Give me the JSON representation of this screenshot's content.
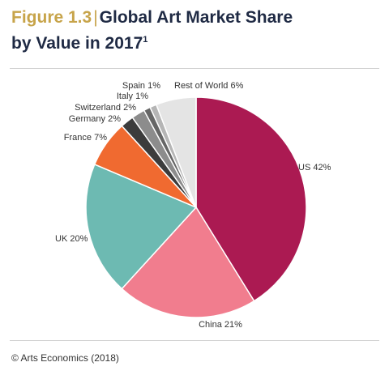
{
  "figure": {
    "label": "Figure 1.3",
    "title_line1": "Global Art Market Share",
    "title_line2": "by Value in 2017",
    "footnote": "1"
  },
  "source": "© Arts Economics (2018)",
  "chart_data": {
    "type": "pie",
    "title": "Global Art Market Share by Value in 2017",
    "unit": "%",
    "slices": [
      {
        "name": "US",
        "value": 42,
        "label": "US 42%",
        "color": "#ab1a52"
      },
      {
        "name": "China",
        "value": 21,
        "label": "China 21%",
        "color": "#f17d8e"
      },
      {
        "name": "UK",
        "value": 20,
        "label": "UK 20%",
        "color": "#6dbab2"
      },
      {
        "name": "France",
        "value": 7,
        "label": "France 7%",
        "color": "#f06a30"
      },
      {
        "name": "Germany",
        "value": 2,
        "label": "Germany 2%",
        "color": "#3c3c3c"
      },
      {
        "name": "Switzerland",
        "value": 2,
        "label": "Switzerland 2%",
        "color": "#8c8c8c"
      },
      {
        "name": "Italy",
        "value": 1,
        "label": "Italy 1%",
        "color": "#666666"
      },
      {
        "name": "Spain",
        "value": 1,
        "label": "Spain 1%",
        "color": "#b5b5b5"
      },
      {
        "name": "Rest of World",
        "value": 6,
        "label": "Rest of World 6%",
        "color": "#e4e4e4"
      }
    ]
  }
}
